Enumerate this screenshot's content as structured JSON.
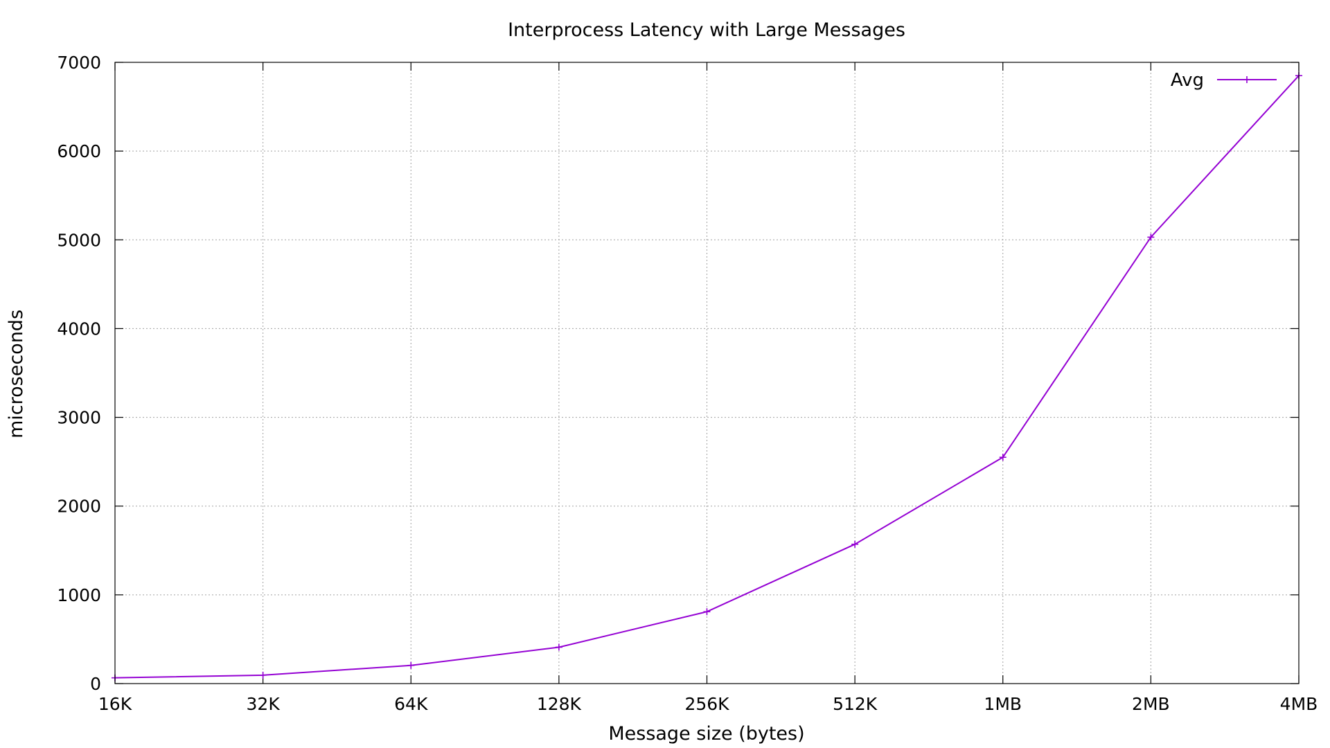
{
  "chart_data": {
    "type": "line",
    "title": "Interprocess Latency with Large Messages",
    "xlabel": "Message size (bytes)",
    "ylabel": "microseconds",
    "categories": [
      "16K",
      "32K",
      "64K",
      "128K",
      "256K",
      "512K",
      "1MB",
      "2MB",
      "4MB"
    ],
    "series": [
      {
        "name": "Avg",
        "values": [
          65,
          95,
          205,
          410,
          810,
          1570,
          2550,
          5030,
          6850
        ],
        "color": "#9400d3"
      }
    ],
    "ylim": [
      0,
      7000
    ],
    "yticks": [
      0,
      1000,
      2000,
      3000,
      4000,
      5000,
      6000,
      7000
    ],
    "grid": true,
    "legend_position": "top-right"
  }
}
